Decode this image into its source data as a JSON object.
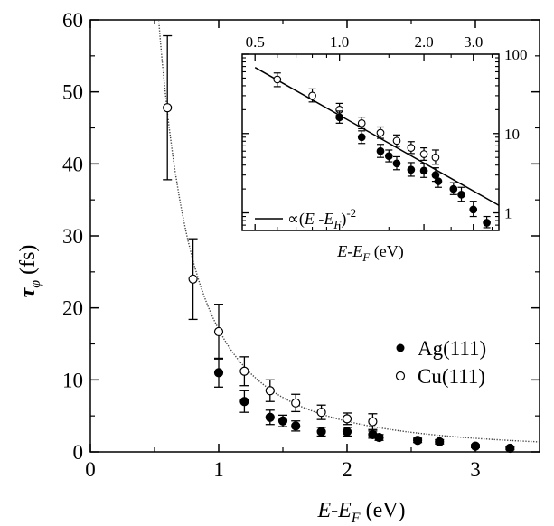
{
  "chart_data": [
    {
      "type": "scatter",
      "xlabel": "E-E_F (eV)",
      "ylabel": "τ_φ (fs)",
      "xlim": [
        0,
        3.5
      ],
      "ylim": [
        0,
        60
      ],
      "xticks": [
        "0",
        "1",
        "2",
        "3"
      ],
      "yticks": [
        "0",
        "10",
        "20",
        "30",
        "40",
        "50",
        "60"
      ],
      "legend_position": "bottom-right",
      "series": [
        {
          "name": "Ag(111)",
          "marker": "filled-circle",
          "points": [
            {
              "x": 1.0,
              "y": 11.0,
              "err": 2.0
            },
            {
              "x": 1.2,
              "y": 7.0,
              "err": 1.5
            },
            {
              "x": 1.4,
              "y": 4.8,
              "err": 1.0
            },
            {
              "x": 1.5,
              "y": 4.3,
              "err": 0.8
            },
            {
              "x": 1.6,
              "y": 3.6,
              "err": 0.7
            },
            {
              "x": 1.8,
              "y": 2.8,
              "err": 0.6
            },
            {
              "x": 2.0,
              "y": 2.8,
              "err": 0.6
            },
            {
              "x": 2.2,
              "y": 2.4,
              "err": 0.5
            },
            {
              "x": 2.25,
              "y": 2.0,
              "err": 0.4
            },
            {
              "x": 2.55,
              "y": 1.6,
              "err": 0.3
            },
            {
              "x": 2.72,
              "y": 1.4,
              "err": 0.3
            },
            {
              "x": 3.0,
              "y": 0.8,
              "err": 0.2
            },
            {
              "x": 3.27,
              "y": 0.5,
              "err": 0.2
            }
          ]
        },
        {
          "name": "Cu(111)",
          "marker": "open-circle",
          "points": [
            {
              "x": 0.6,
              "y": 47.8,
              "err": 10.0
            },
            {
              "x": 0.8,
              "y": 24.0,
              "err": 5.6
            },
            {
              "x": 1.0,
              "y": 16.7,
              "err": 3.8
            },
            {
              "x": 1.2,
              "y": 11.2,
              "err": 2.0
            },
            {
              "x": 1.4,
              "y": 8.5,
              "err": 1.5
            },
            {
              "x": 1.6,
              "y": 6.8,
              "err": 1.2
            },
            {
              "x": 1.8,
              "y": 5.5,
              "err": 1.0
            },
            {
              "x": 2.0,
              "y": 4.6,
              "err": 0.8
            },
            {
              "x": 2.2,
              "y": 4.2,
              "err": 1.1
            }
          ]
        },
        {
          "name": "",
          "style": "dotted-curve",
          "function": "a/(E-E_F)^2",
          "a": 17.0
        }
      ]
    },
    {
      "type": "scatter",
      "inset": true,
      "xlabel": "E-E_F (eV)",
      "xscale": "log",
      "yscale": "log",
      "xlim": [
        0.45,
        3.7
      ],
      "ylim": [
        0.6,
        100
      ],
      "xticks": [
        "0.5",
        "1.0",
        "2.0",
        "3.0"
      ],
      "yticks": [
        "1",
        "10",
        "100"
      ],
      "legend_position": "bottom-left",
      "legend_label": "∝(E -E_F)^-2",
      "series": [
        {
          "name": "Ag(111)",
          "marker": "filled-circle",
          "points": [
            {
              "x": 1.0,
              "y": 16.0,
              "err_low": 2.5,
              "err_high": 3.2
            },
            {
              "x": 1.2,
              "y": 9.0,
              "err_low": 1.5,
              "err_high": 1.8
            },
            {
              "x": 1.4,
              "y": 6.0,
              "err_low": 1.0,
              "err_high": 1.3
            },
            {
              "x": 1.5,
              "y": 5.2,
              "err_low": 0.8,
              "err_high": 1.0
            },
            {
              "x": 1.6,
              "y": 4.2,
              "err_low": 0.7,
              "err_high": 0.9
            },
            {
              "x": 1.8,
              "y": 3.5,
              "err_low": 0.6,
              "err_high": 0.8
            },
            {
              "x": 2.0,
              "y": 3.4,
              "err_low": 0.6,
              "err_high": 0.8
            },
            {
              "x": 2.2,
              "y": 3.0,
              "err_low": 0.5,
              "err_high": 0.7
            },
            {
              "x": 2.25,
              "y": 2.5,
              "err_low": 0.4,
              "err_high": 0.6
            },
            {
              "x": 2.55,
              "y": 2.0,
              "err_low": 0.3,
              "err_high": 0.4
            },
            {
              "x": 2.72,
              "y": 1.7,
              "err_low": 0.3,
              "err_high": 0.4
            },
            {
              "x": 3.0,
              "y": 1.1,
              "err_low": 0.2,
              "err_high": 0.3
            },
            {
              "x": 3.35,
              "y": 0.75,
              "err_low": 0.1,
              "err_high": 0.15
            }
          ]
        },
        {
          "name": "Cu(111)",
          "marker": "open-circle",
          "points": [
            {
              "x": 0.6,
              "y": 48.0,
              "err_low": 9.0,
              "err_high": 10.0
            },
            {
              "x": 0.8,
              "y": 30.0,
              "err_low": 5.0,
              "err_high": 6.5
            },
            {
              "x": 1.0,
              "y": 20.0,
              "err_low": 3.0,
              "err_high": 4.0
            },
            {
              "x": 1.2,
              "y": 13.5,
              "err_low": 2.0,
              "err_high": 2.6
            },
            {
              "x": 1.4,
              "y": 10.2,
              "err_low": 1.5,
              "err_high": 1.9
            },
            {
              "x": 1.6,
              "y": 8.1,
              "err_low": 1.2,
              "err_high": 1.5
            },
            {
              "x": 1.8,
              "y": 6.6,
              "err_low": 1.0,
              "err_high": 1.3
            },
            {
              "x": 2.0,
              "y": 5.5,
              "err_low": 0.9,
              "err_high": 1.1
            },
            {
              "x": 2.2,
              "y": 5.0,
              "err_low": 0.9,
              "err_high": 1.2
            }
          ]
        },
        {
          "name": "",
          "style": "solid-line",
          "function": "a/(E-E_F)^2",
          "a": 17.0
        }
      ]
    }
  ]
}
